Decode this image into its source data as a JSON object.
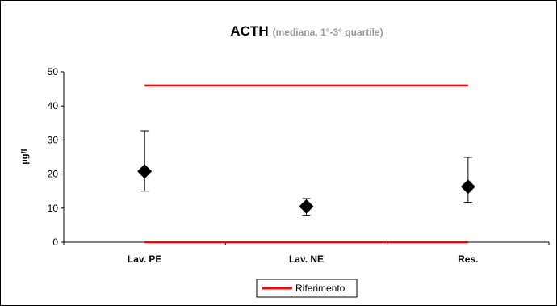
{
  "chart_data": {
    "type": "scatter",
    "title": "ACTH",
    "subtitle": "(mediana, 1°-3° quartile)",
    "ylabel": "µg/l",
    "xlabel": "",
    "ylim": [
      0,
      50
    ],
    "yticks": [
      0,
      10,
      20,
      30,
      40,
      50
    ],
    "grid": false,
    "categories": [
      "Lav. PE",
      "Lav. NE",
      "Res."
    ],
    "series": [
      {
        "values": [
          20.8,
          10.5,
          16.3
        ],
        "q1": [
          15.0,
          7.9,
          11.7
        ],
        "q3": [
          32.7,
          12.8,
          24.9
        ],
        "marker": "diamond",
        "color": "#000000"
      }
    ],
    "reference": {
      "name": "Riferimento",
      "lower": 0,
      "upper": 46,
      "color": "#ff0000"
    },
    "legend": {
      "position": "bottom",
      "entries": [
        "Riferimento"
      ]
    }
  }
}
